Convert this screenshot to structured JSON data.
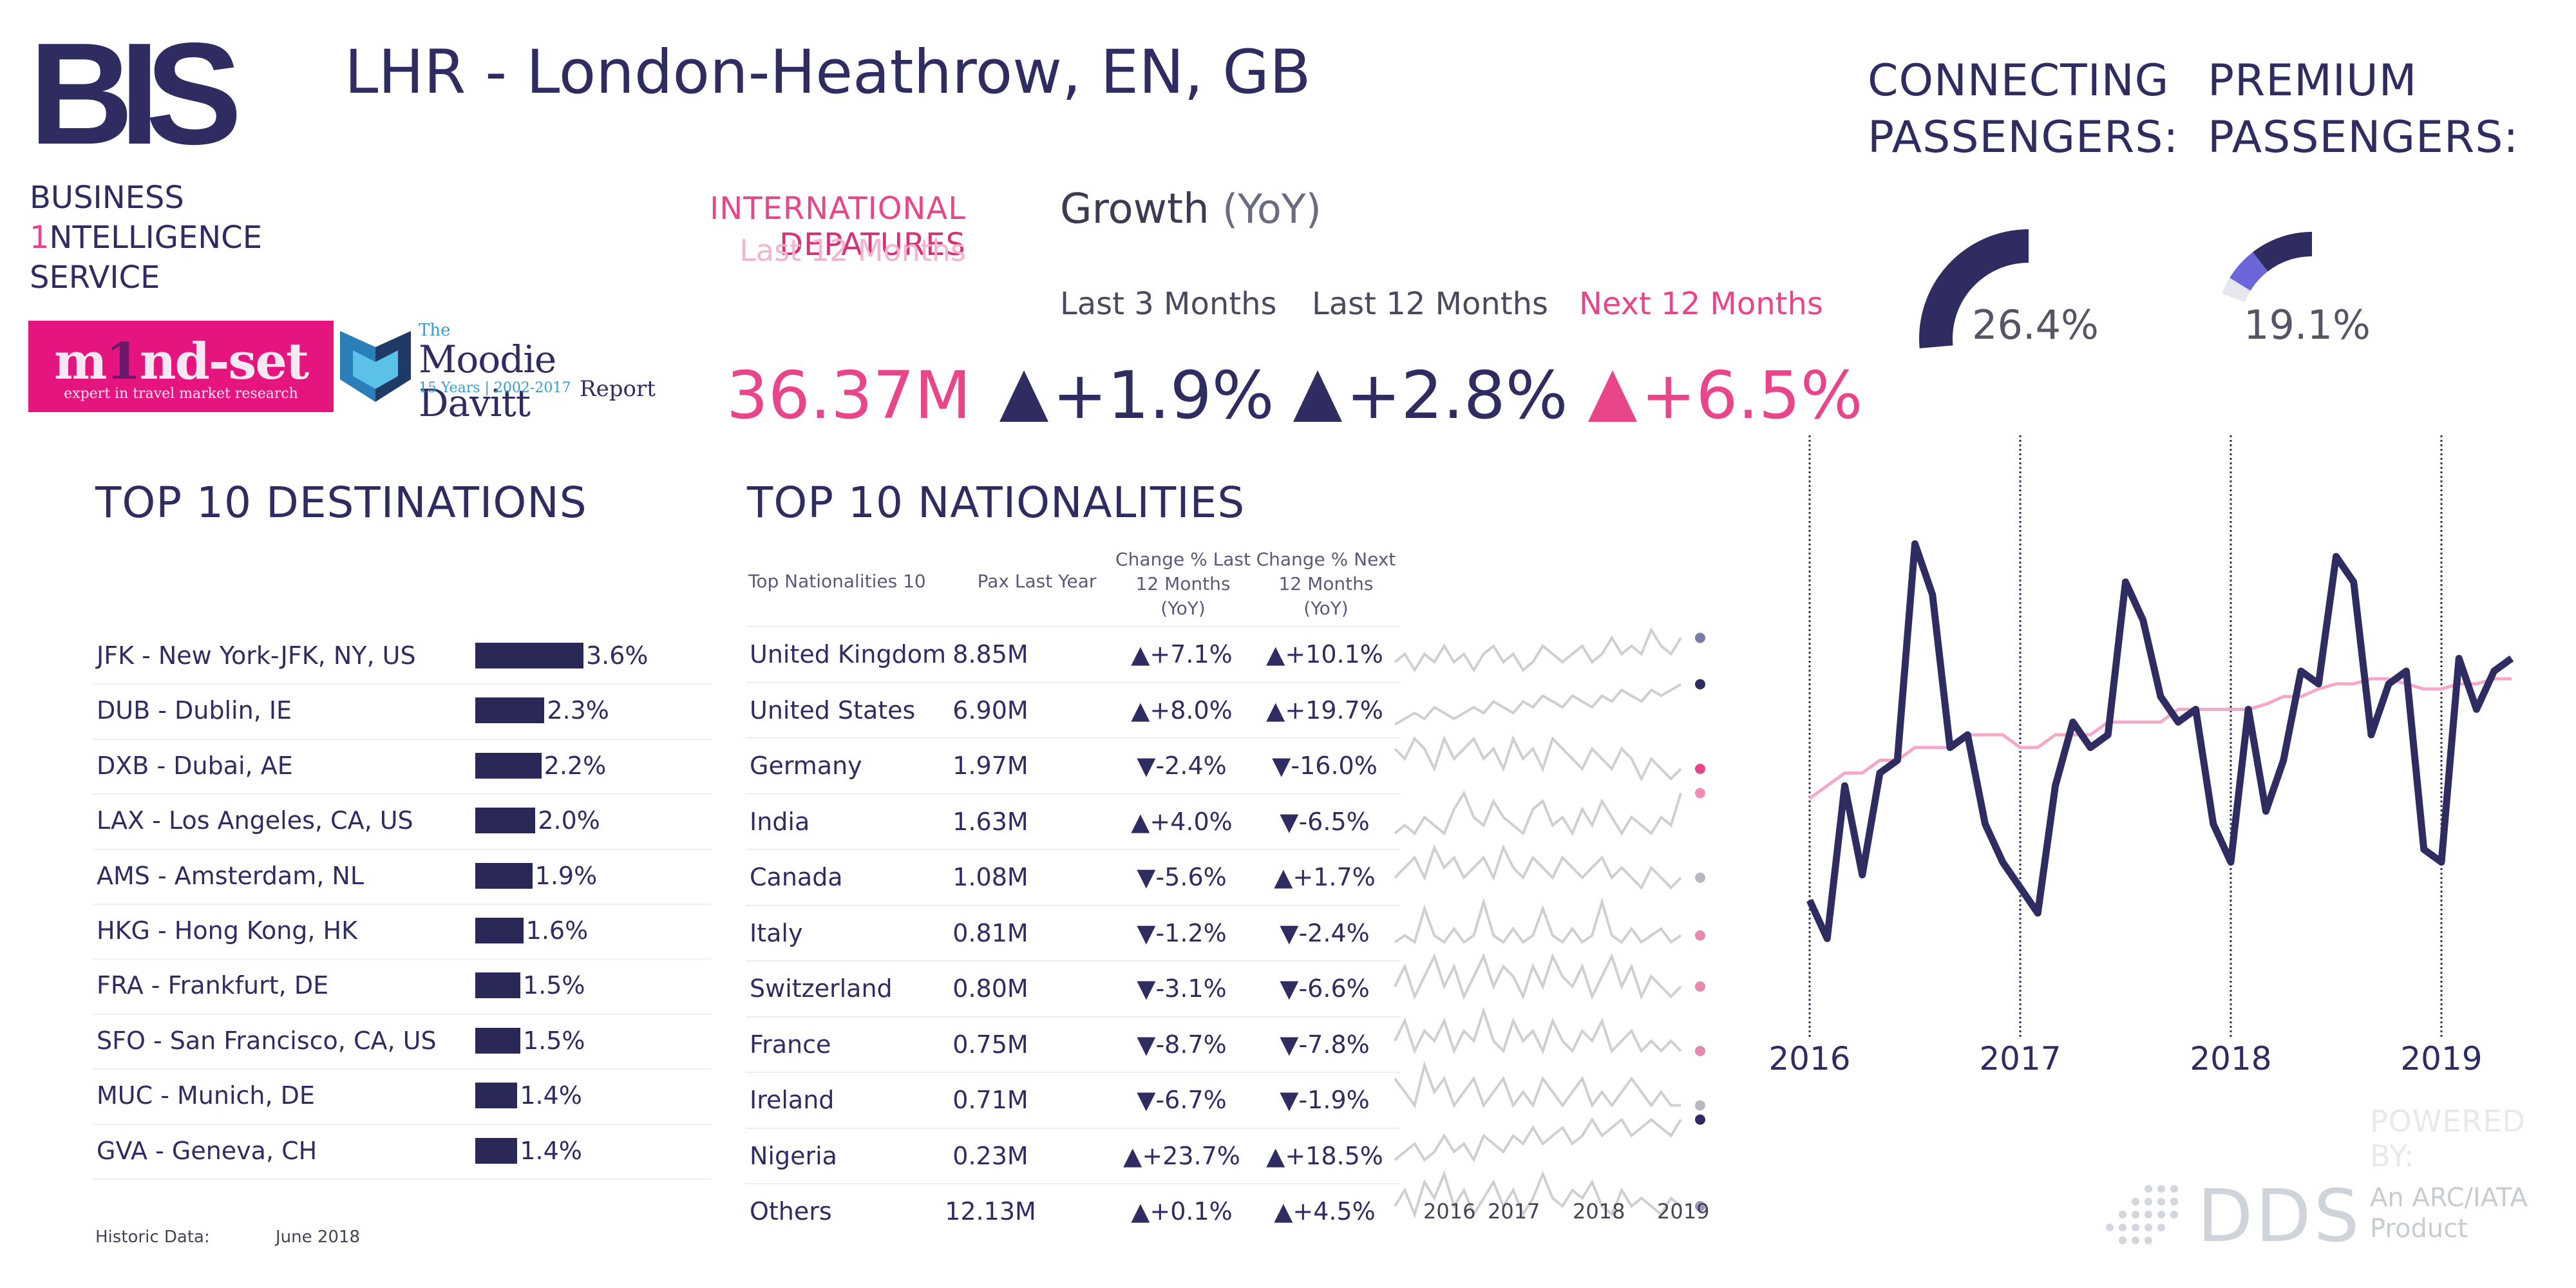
{
  "header": {
    "title": "LHR - London-Heathrow, EN, GB"
  },
  "branding": {
    "bis_logo": "BIS",
    "bis_line1": "BUSINESS",
    "bis_line2_one": "1",
    "bis_line2_rest": "NTELLIGENCE",
    "bis_line3": "SERVICE",
    "mindset_m": "m",
    "mindset_one": "1",
    "mindset_rest": "nd-set",
    "mindset_tagline": "expert in travel market research",
    "moodie_the": "The",
    "moodie_name": "Moodie Davitt",
    "moodie_years": "15 Years | 2002-2017",
    "moodie_report": "Report"
  },
  "departures": {
    "label_a": "INTERNATIONAL",
    "label_b": "DEPATURES",
    "period": "Last 12 Months",
    "value": "36.37M"
  },
  "growth": {
    "title": "Growth",
    "title_sub": "(YoY)",
    "periods": [
      "Last 3 Months",
      "Last 12 Months",
      "Next 12 Months"
    ],
    "values": [
      "+1.9%",
      "+2.8%",
      "+6.5%"
    ]
  },
  "connecting": {
    "label_1": "CONNECTING",
    "label_2": "PASSENGERS:",
    "value": "26.4%",
    "fraction": 0.264
  },
  "premium": {
    "label_1": "PREMIUM",
    "label_2": "PASSENGERS:",
    "value": "19.1%",
    "fraction": 0.191
  },
  "destinations": {
    "title": "TOP 10 DESTINATIONS",
    "rows": [
      {
        "name": "JFK - New York-JFK, NY, US",
        "pct": "3.6%",
        "value": 3.6
      },
      {
        "name": "DUB - Dublin, IE",
        "pct": "2.3%",
        "value": 2.3
      },
      {
        "name": "DXB - Dubai, AE",
        "pct": "2.2%",
        "value": 2.2
      },
      {
        "name": "LAX - Los Angeles, CA, US",
        "pct": "2.0%",
        "value": 2.0
      },
      {
        "name": "AMS - Amsterdam, NL",
        "pct": "1.9%",
        "value": 1.9
      },
      {
        "name": "HKG - Hong Kong, HK",
        "pct": "1.6%",
        "value": 1.6
      },
      {
        "name": "FRA - Frankfurt, DE",
        "pct": "1.5%",
        "value": 1.5
      },
      {
        "name": "SFO - San Francisco, CA, US",
        "pct": "1.5%",
        "value": 1.5
      },
      {
        "name": "MUC - Munich, DE",
        "pct": "1.4%",
        "value": 1.4
      },
      {
        "name": "GVA - Geneva, CH",
        "pct": "1.4%",
        "value": 1.4
      }
    ],
    "historic_label": "Historic Data:",
    "historic_value": "June 2018"
  },
  "nationalities": {
    "title": "TOP 10 NATIONALITIES",
    "headers": {
      "name": "Top Nationalities 10",
      "pax": "Pax Last Year",
      "c1_a": "Change % Last",
      "c1_b": "12 Months",
      "c1_c": "(YoY)",
      "c2_a": "Change % Next",
      "c2_b": "12 Months",
      "c2_c": "(YoY)"
    },
    "rows": [
      {
        "name": "United Kingdom",
        "pax": "8.85M",
        "c1": "▲+7.1%",
        "c2": "▲+10.1%"
      },
      {
        "name": "United States",
        "pax": "6.90M",
        "c1": "▲+8.0%",
        "c2": "▲+19.7%"
      },
      {
        "name": "Germany",
        "pax": "1.97M",
        "c1": "▼-2.4%",
        "c2": "▼-16.0%"
      },
      {
        "name": "India",
        "pax": "1.63M",
        "c1": "▲+4.0%",
        "c2": "▼-6.5%"
      },
      {
        "name": "Canada",
        "pax": "1.08M",
        "c1": "▼-5.6%",
        "c2": "▲+1.7%"
      },
      {
        "name": "Italy",
        "pax": "0.81M",
        "c1": "▼-1.2%",
        "c2": "▼-2.4%"
      },
      {
        "name": "Switzerland",
        "pax": "0.80M",
        "c1": "▼-3.1%",
        "c2": "▼-6.6%"
      },
      {
        "name": "France",
        "pax": "0.75M",
        "c1": "▼-8.7%",
        "c2": "▼-7.8%"
      },
      {
        "name": "Ireland",
        "pax": "0.71M",
        "c1": "▼-6.7%",
        "c2": "▼-1.9%"
      },
      {
        "name": "Nigeria",
        "pax": "0.23M",
        "c1": "▲+23.7%",
        "c2": "▲+18.5%"
      },
      {
        "name": "Others",
        "pax": "12.13M",
        "c1": "▲+0.1%",
        "c2": "▲+4.5%"
      }
    ],
    "spark_years": [
      "2016",
      "2017",
      "2018",
      "2019"
    ],
    "spark_dot_colors": [
      "#7b7ba8",
      "#2e2c61",
      "#e8458b",
      "#f08bb6",
      "#b9b9c4",
      "#e58ab0",
      "#e58ab0",
      "#e58ab0",
      "#b9b9c4",
      "#2e2c61",
      "#9a9ac0"
    ],
    "spark_series": [
      [
        5,
        6,
        4,
        6,
        5,
        7,
        5,
        6,
        4,
        6,
        7,
        5,
        6,
        4,
        5,
        7,
        6,
        5,
        6,
        7,
        5,
        6,
        8,
        6,
        7,
        6,
        9,
        7,
        6,
        8
      ],
      [
        3,
        4,
        5,
        4,
        6,
        5,
        4,
        5,
        6,
        5,
        7,
        6,
        5,
        7,
        6,
        8,
        7,
        6,
        8,
        7,
        6,
        8,
        7,
        9,
        8,
        7,
        9,
        8,
        9,
        10
      ],
      [
        8,
        7,
        9,
        8,
        6,
        9,
        7,
        8,
        9,
        7,
        8,
        6,
        9,
        7,
        8,
        6,
        9,
        8,
        7,
        6,
        8,
        7,
        6,
        8,
        7,
        5,
        7,
        6,
        5,
        6
      ],
      [
        4,
        5,
        4,
        6,
        5,
        4,
        7,
        9,
        6,
        5,
        8,
        6,
        5,
        4,
        7,
        8,
        5,
        6,
        4,
        7,
        5,
        8,
        6,
        4,
        6,
        5,
        4,
        6,
        5,
        9
      ],
      [
        6,
        7,
        8,
        6,
        9,
        7,
        8,
        6,
        7,
        8,
        6,
        9,
        7,
        6,
        8,
        7,
        6,
        8,
        7,
        6,
        7,
        8,
        6,
        7,
        6,
        5,
        7,
        6,
        5,
        6
      ],
      [
        4,
        5,
        4,
        9,
        5,
        4,
        6,
        4,
        5,
        10,
        5,
        4,
        6,
        4,
        5,
        9,
        5,
        4,
        6,
        4,
        5,
        10,
        5,
        4,
        6,
        4,
        5,
        6,
        4,
        5
      ],
      [
        6,
        8,
        5,
        7,
        9,
        6,
        8,
        5,
        7,
        9,
        6,
        8,
        7,
        5,
        8,
        6,
        9,
        7,
        6,
        8,
        5,
        7,
        9,
        6,
        8,
        5,
        7,
        6,
        5,
        6
      ],
      [
        7,
        9,
        6,
        8,
        7,
        9,
        6,
        8,
        7,
        10,
        7,
        6,
        9,
        7,
        8,
        6,
        9,
        7,
        6,
        8,
        7,
        9,
        6,
        7,
        8,
        6,
        7,
        6,
        7,
        6
      ],
      [
        8,
        7,
        6,
        9,
        7,
        8,
        6,
        7,
        8,
        6,
        7,
        8,
        6,
        7,
        6,
        8,
        7,
        6,
        7,
        8,
        6,
        7,
        6,
        7,
        8,
        7,
        6,
        7,
        6,
        6
      ],
      [
        5,
        6,
        7,
        5,
        6,
        8,
        6,
        7,
        5,
        8,
        7,
        6,
        8,
        7,
        9,
        7,
        8,
        9,
        7,
        8,
        10,
        8,
        9,
        10,
        8,
        9,
        10,
        9,
        8,
        10
      ],
      [
        6,
        8,
        5,
        9,
        7,
        10,
        6,
        8,
        5,
        7,
        9,
        6,
        8,
        5,
        7,
        10,
        7,
        6,
        8,
        7,
        9,
        6,
        5,
        8,
        6,
        7,
        6,
        5,
        7,
        6
      ]
    ]
  },
  "chart_data": {
    "type": "line",
    "title": "",
    "xlabel": "",
    "ylabel": "",
    "x_ticks": [
      "2016",
      "2017",
      "2018",
      "2019"
    ],
    "x_tick_month_index": [
      0,
      12,
      24,
      36
    ],
    "series": [
      {
        "color": "#2e2c61",
        "values": [
          1.95,
          1.8,
          2.4,
          2.05,
          2.45,
          2.5,
          3.35,
          3.15,
          2.55,
          2.6,
          2.25,
          2.1,
          2.0,
          1.9,
          2.4,
          2.65,
          2.55,
          2.6,
          3.2,
          3.05,
          2.75,
          2.65,
          2.7,
          2.25,
          2.1,
          2.7,
          2.3,
          2.5,
          2.85,
          2.8,
          3.3,
          3.2,
          2.6,
          2.8,
          2.85,
          2.15,
          2.1,
          2.9,
          2.7,
          2.85,
          2.9
        ]
      },
      {
        "color": "#f4a9c9",
        "values": [
          2.35,
          2.4,
          2.45,
          2.45,
          2.5,
          2.5,
          2.55,
          2.55,
          2.55,
          2.6,
          2.6,
          2.6,
          2.55,
          2.55,
          2.6,
          2.6,
          2.6,
          2.65,
          2.65,
          2.65,
          2.65,
          2.7,
          2.7,
          2.7,
          2.7,
          2.7,
          2.72,
          2.75,
          2.75,
          2.78,
          2.8,
          2.8,
          2.82,
          2.82,
          2.8,
          2.78,
          2.78,
          2.8,
          2.8,
          2.82,
          2.82
        ]
      }
    ],
    "ylim": [
      1.5,
      3.7
    ],
    "grid": false,
    "legend": "none"
  },
  "footer": {
    "powered_by": "POWERED BY:",
    "dds": "DDS",
    "dds_sub_1": "An ARC/IATA",
    "dds_sub_2": "Product"
  }
}
